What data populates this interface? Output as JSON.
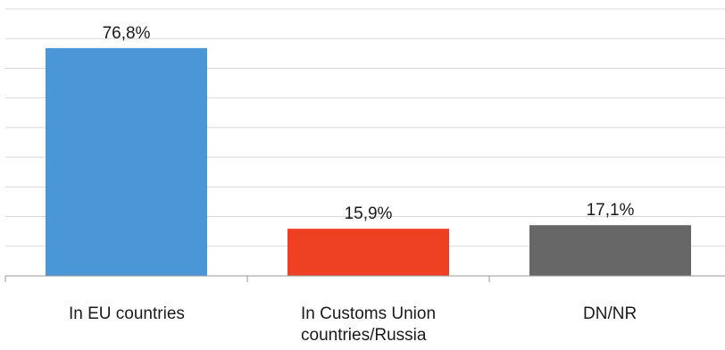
{
  "chart_data": {
    "type": "bar",
    "title": "",
    "xlabel": "",
    "ylabel": "",
    "ylim": [
      0,
      90
    ],
    "grid": true,
    "legend": "none",
    "categories": [
      "In EU countries",
      "In Customs Union countries/Russia",
      "DN/NR"
    ],
    "category_lines": [
      [
        "In EU countries"
      ],
      [
        "In Customs Union",
        "countries/Russia"
      ],
      [
        "DN/NR"
      ]
    ],
    "values": [
      76.8,
      15.9,
      17.1
    ],
    "value_labels": [
      "76,8%",
      "15,9%",
      "17,1%"
    ],
    "colors": [
      "#4A96D6",
      "#EE4123",
      "#676767"
    ]
  }
}
